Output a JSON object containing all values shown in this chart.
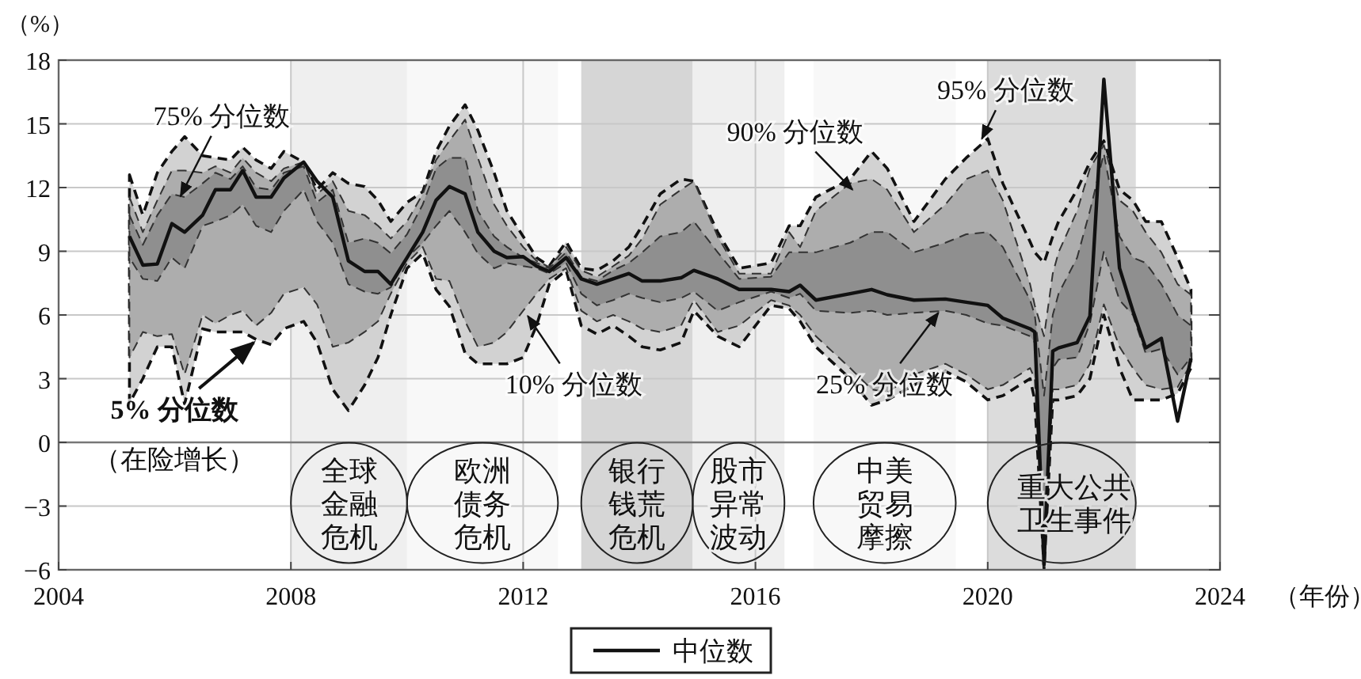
{
  "chart_data": {
    "type": "line",
    "xlabel": "（年份）",
    "ylabel": "（%）",
    "x": [
      2005.22,
      2005.45,
      2005.7,
      2005.95,
      2006.17,
      2006.48,
      2006.7,
      2006.96,
      2007.17,
      2007.4,
      2007.66,
      2007.88,
      2008.22,
      2008.45,
      2008.72,
      2008.99,
      2009.27,
      2009.5,
      2009.72,
      2010.0,
      2010.27,
      2010.5,
      2010.73,
      2011.0,
      2011.22,
      2011.5,
      2011.72,
      2012.0,
      2012.23,
      2012.45,
      2012.74,
      2013.0,
      2013.27,
      2013.55,
      2013.82,
      2014.05,
      2014.36,
      2014.72,
      2014.94,
      2015.35,
      2015.72,
      2016.27,
      2016.58,
      2016.77,
      2017.04,
      2017.63,
      2018.0,
      2018.27,
      2018.73,
      2019.27,
      2019.63,
      2020.0,
      2020.26,
      2020.73,
      2020.81,
      2020.97,
      2021.12,
      2021.22,
      2021.54,
      2021.76,
      2022.0,
      2022.27,
      2022.5,
      2022.72,
      2022.99,
      2023.27,
      2023.5
    ],
    "series": [
      {
        "color": "#111111",
        "values": [
          null,
          null,
          null,
          null,
          null,
          null,
          null,
          null,
          null,
          null,
          null,
          null,
          null,
          null,
          null,
          null,
          null,
          null,
          null,
          null,
          null,
          null,
          null,
          null,
          null,
          null,
          null,
          null,
          null,
          null,
          null,
          null,
          null,
          null,
          null,
          null,
          null,
          null,
          null,
          null,
          null,
          null,
          null,
          null,
          null,
          null,
          null,
          null,
          null,
          null,
          null,
          null,
          null,
          null,
          null,
          null,
          null,
          null,
          null,
          null,
          null,
          null,
          null,
          null,
          null,
          null,
          null
        ],
        "lower": [
          1.85,
          3.0,
          4.5,
          4.5,
          1.8,
          5.35,
          5.2,
          5.2,
          5.2,
          4.85,
          4.6,
          5.35,
          5.7,
          4.7,
          2.5,
          1.5,
          2.7,
          4.0,
          6.0,
          8.2,
          8.9,
          7.2,
          6.4,
          4.2,
          3.7,
          3.7,
          3.7,
          4.0,
          5.5,
          7.45,
          8.1,
          5.5,
          5.1,
          5.5,
          5.0,
          4.5,
          4.35,
          4.7,
          6.2,
          5.0,
          4.5,
          6.45,
          6.3,
          5.7,
          4.5,
          3.0,
          1.75,
          2.0,
          2.7,
          3.35,
          2.85,
          2.0,
          2.2,
          3.0,
          2.0,
          -5.95,
          2.0,
          2.0,
          2.2,
          3.0,
          6.0,
          3.5,
          2.0,
          2.0,
          2.0,
          2.3,
          3.5
        ],
        "upper": [
          12.6,
          10.7,
          12.7,
          13.7,
          14.4,
          13.5,
          13.4,
          13.3,
          13.9,
          13.3,
          12.9,
          13.7,
          13.2,
          11.9,
          12.7,
          12.2,
          12.05,
          11.4,
          10.4,
          11.3,
          11.8,
          13.7,
          14.9,
          15.9,
          14.7,
          12.7,
          10.9,
          9.7,
          8.7,
          8.3,
          9.45,
          8.2,
          8.1,
          8.55,
          9.2,
          10.2,
          11.7,
          12.4,
          12.3,
          9.9,
          8.2,
          8.45,
          10.2,
          10.2,
          11.55,
          12.4,
          13.7,
          12.9,
          10.4,
          12.4,
          13.4,
          14.3,
          12.2,
          9.45,
          8.95,
          8.45,
          9.7,
          10.4,
          11.9,
          13.2,
          14.2,
          11.9,
          11.4,
          10.4,
          10.4,
          8.7,
          7.2
        ]
      },
      {
        "color": "#111111",
        "values": [
          null,
          null,
          null,
          null,
          null,
          null,
          null,
          null,
          null,
          null,
          null,
          null,
          null,
          null,
          null,
          null,
          null,
          null,
          null,
          null,
          null,
          null,
          null,
          null,
          null,
          null,
          null,
          null,
          null,
          null,
          null,
          null,
          null,
          null,
          null,
          null,
          null,
          null,
          null,
          null,
          null,
          null,
          null,
          null,
          null,
          null,
          null,
          null,
          null,
          null,
          null,
          null,
          null,
          null,
          null,
          null,
          null,
          null,
          null,
          null,
          null,
          null,
          null,
          null,
          null,
          null,
          null
        ],
        "lower": [
          4.0,
          5.2,
          5.0,
          5.1,
          3.2,
          6.0,
          5.6,
          6.0,
          6.2,
          5.5,
          6.1,
          7.0,
          7.3,
          6.5,
          4.5,
          4.7,
          5.2,
          5.7,
          7.0,
          8.45,
          9.2,
          7.7,
          7.6,
          5.7,
          4.5,
          4.7,
          5.2,
          6.2,
          7.0,
          7.7,
          8.2,
          6.2,
          5.7,
          6.0,
          5.7,
          5.35,
          5.2,
          5.5,
          6.7,
          5.2,
          5.5,
          6.7,
          6.45,
          6.0,
          5.0,
          3.5,
          2.5,
          2.35,
          3.2,
          3.7,
          3.2,
          2.5,
          2.7,
          3.5,
          3.0,
          -5.9,
          2.5,
          2.5,
          2.7,
          3.7,
          6.5,
          4.5,
          3.5,
          2.7,
          2.5,
          2.6,
          3.7
        ],
        "upper": [
          11.55,
          9.9,
          11.4,
          12.8,
          12.8,
          12.7,
          13.0,
          12.7,
          13.4,
          12.7,
          12.3,
          12.9,
          13.2,
          11.7,
          12.3,
          10.9,
          10.7,
          10.2,
          9.6,
          10.4,
          11.7,
          13.3,
          14.2,
          15.2,
          13.4,
          11.2,
          10.2,
          9.2,
          8.55,
          8.25,
          9.2,
          8.1,
          7.8,
          8.3,
          8.8,
          9.6,
          11.2,
          11.9,
          12.3,
          9.7,
          7.95,
          7.95,
          9.9,
          9.2,
          10.9,
          12.2,
          12.4,
          11.9,
          9.9,
          11.2,
          12.4,
          12.8,
          11.4,
          7.45,
          6.45,
          5.0,
          7.95,
          8.95,
          10.9,
          12.9,
          14.0,
          11.4,
          10.9,
          9.9,
          8.95,
          7.45,
          6.95
        ]
      },
      {
        "name": "中位数",
        "color": "#111111",
        "values": [
          9.7,
          8.35,
          8.4,
          10.3,
          9.9,
          10.7,
          11.9,
          11.9,
          12.8,
          11.55,
          11.55,
          12.45,
          13.2,
          12.3,
          11.55,
          8.55,
          8.05,
          8.05,
          7.45,
          8.7,
          9.9,
          11.4,
          12.05,
          11.7,
          9.9,
          9.0,
          8.7,
          8.75,
          8.3,
          8.05,
          8.7,
          7.7,
          7.45,
          7.7,
          7.95,
          7.6,
          7.6,
          7.75,
          8.1,
          7.7,
          7.2,
          7.2,
          7.1,
          7.4,
          6.7,
          7.0,
          7.2,
          6.95,
          6.7,
          6.75,
          6.6,
          6.45,
          5.85,
          5.35,
          5.2,
          -5.75,
          4.3,
          4.45,
          4.7,
          5.95,
          17.1,
          8.2,
          6.2,
          4.45,
          4.9,
          1.0,
          3.95
        ],
        "lower": [
          8.7,
          7.7,
          7.6,
          8.7,
          8.2,
          10.2,
          10.4,
          10.7,
          11.2,
          10.2,
          9.9,
          10.9,
          11.9,
          10.4,
          9.4,
          7.45,
          7.1,
          7.0,
          7.3,
          8.7,
          9.4,
          10.2,
          10.9,
          9.9,
          8.9,
          8.2,
          8.45,
          8.3,
          8.2,
          7.95,
          8.45,
          7.0,
          6.45,
          6.7,
          7.0,
          6.8,
          6.6,
          6.8,
          7.1,
          6.2,
          6.6,
          7.1,
          6.8,
          7.0,
          6.2,
          6.1,
          6.2,
          6.0,
          6.1,
          6.2,
          6.0,
          5.6,
          5.5,
          5.0,
          4.7,
          -5.85,
          3.5,
          3.9,
          4.0,
          5.6,
          9.0,
          6.7,
          6.0,
          4.2,
          4.4,
          3.2,
          4.0
        ],
        "upper": [
          10.7,
          9.3,
          10.7,
          11.7,
          11.55,
          12.2,
          12.7,
          12.4,
          13.0,
          12.0,
          11.9,
          12.7,
          13.0,
          11.3,
          11.9,
          9.4,
          9.6,
          9.4,
          8.9,
          9.8,
          11.2,
          12.9,
          13.4,
          13.4,
          10.9,
          9.7,
          9.2,
          8.7,
          8.45,
          8.2,
          8.95,
          7.8,
          7.6,
          8.1,
          8.45,
          8.95,
          9.7,
          9.9,
          10.4,
          8.95,
          7.7,
          7.8,
          8.95,
          8.95,
          8.95,
          9.4,
          9.9,
          9.9,
          8.95,
          9.4,
          9.8,
          9.9,
          9.2,
          6.7,
          6.0,
          2.2,
          6.0,
          7.0,
          8.7,
          10.9,
          13.6,
          9.7,
          8.7,
          8.45,
          7.45,
          6.0,
          5.5
        ]
      }
    ],
    "xlim": [
      2004,
      2024
    ],
    "xticks": [
      2004,
      2008,
      2012,
      2016,
      2020,
      2024
    ],
    "ylim": [
      -6,
      18
    ],
    "yticks": [
      {
        "value": -6,
        "label": "−6"
      },
      {
        "value": -3,
        "label": "−3"
      },
      0,
      3,
      6,
      9,
      12,
      15,
      18
    ],
    "grid": true,
    "legend": "bottom",
    "bands": [
      {
        "axis": "x",
        "from": 2008,
        "to": 2010,
        "color": "#efefef",
        "label": "全球金融危机"
      },
      {
        "axis": "x",
        "from": 2010,
        "to": 2012.6,
        "color": "#f8f8f8",
        "label": "欧洲债务危机"
      },
      {
        "axis": "x",
        "from": 2013,
        "to": 2014.92,
        "color": "#d6d6d6",
        "label": "银行钱荒危机"
      },
      {
        "axis": "x",
        "from": 2014.92,
        "to": 2016.5,
        "color": "#efefef",
        "label": "股市异常波动"
      },
      {
        "axis": "x",
        "from": 2017,
        "to": 2019.45,
        "color": "#f8f8f8",
        "label": "中美贸易摩擦"
      },
      {
        "axis": "x",
        "from": 2020,
        "to": 2022.55,
        "color": "#dcdcdc",
        "label": "重大公共卫生事件"
      }
    ],
    "annotations": [
      {
        "text": "75% 分位数",
        "x": 2006.1,
        "y": 11.6
      },
      {
        "text": "5% 分位数",
        "x": 2007.36,
        "y": 4.7
      },
      "（在险增长）",
      {
        "text": "10% 分位数",
        "x": 2012.08,
        "y": 5.95
      },
      {
        "text": "90% 分位数",
        "x": 2017.67,
        "y": 11.9
      },
      {
        "text": "95% 分位数",
        "x": 2019.9,
        "y": 14.3
      },
      {
        "text": "25% 分位数",
        "x": 2019.15,
        "y": 6.1
      }
    ]
  }
}
